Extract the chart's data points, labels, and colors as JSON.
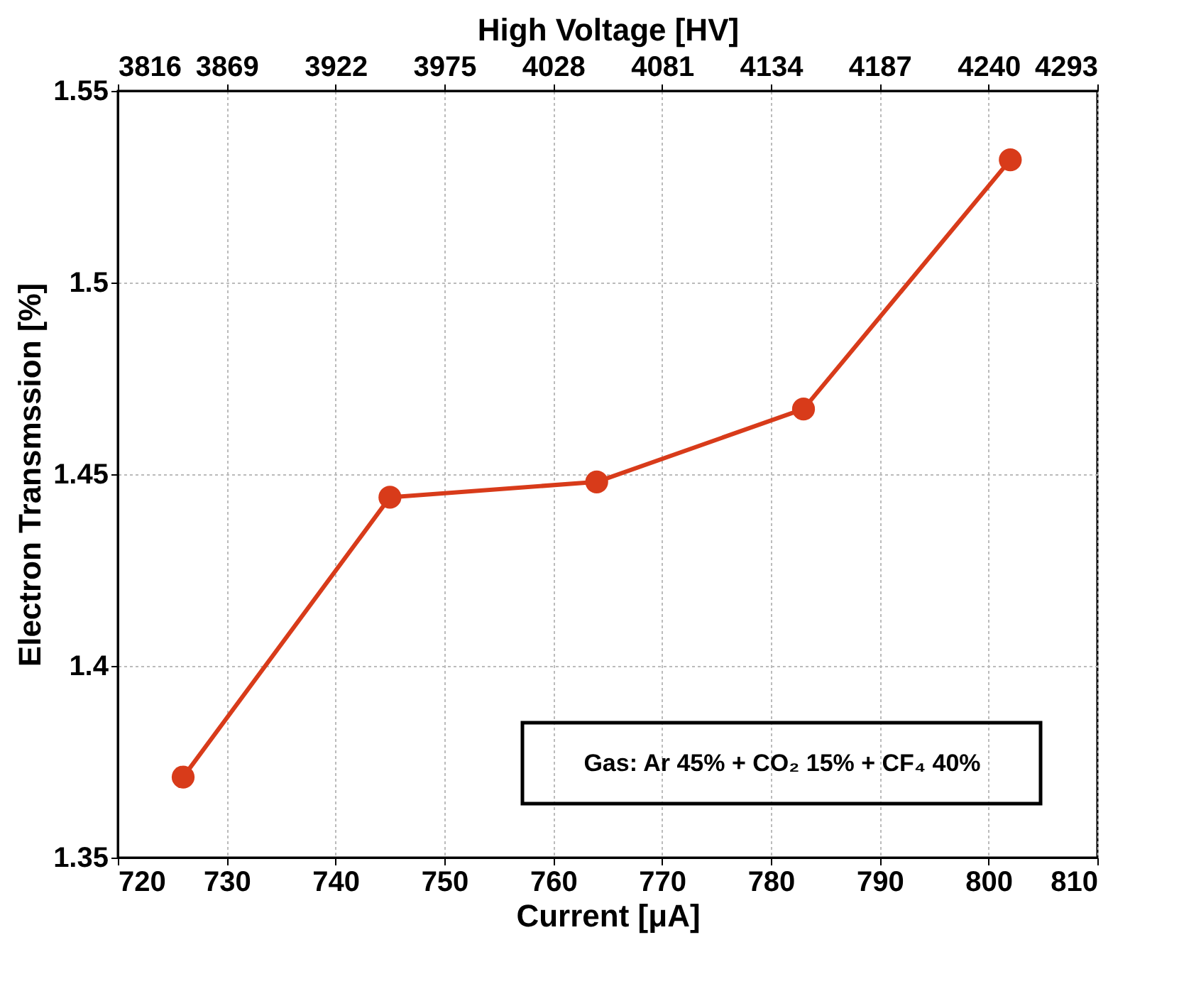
{
  "chart_data": {
    "type": "line",
    "xlabel": "Current [μA]",
    "ylabel": "Electron Transmssion [%]",
    "x2label": "High Voltage [HV]",
    "x": [
      726,
      745,
      764,
      783,
      802
    ],
    "series": [
      {
        "color": "#d83b1a",
        "values": [
          1.371,
          1.444,
          1.448,
          1.467,
          1.532
        ]
      }
    ],
    "xlim": [
      720,
      810
    ],
    "xticks": [
      720,
      730,
      740,
      750,
      760,
      770,
      780,
      790,
      800,
      810
    ],
    "x2lim": [
      3816,
      4293
    ],
    "x2ticks": [
      3816,
      3869,
      3922,
      3975,
      4028,
      4081,
      4134,
      4187,
      4240,
      4293
    ],
    "ylim": [
      1.35,
      1.55
    ],
    "yticks": [
      1.35,
      1.4,
      1.45,
      1.5,
      1.55
    ],
    "grid": true,
    "marker": "circle",
    "line_style": "solid",
    "annotations": [
      "Gas: Ar 45% + CO₂ 15% + CF₄ 40%"
    ]
  }
}
